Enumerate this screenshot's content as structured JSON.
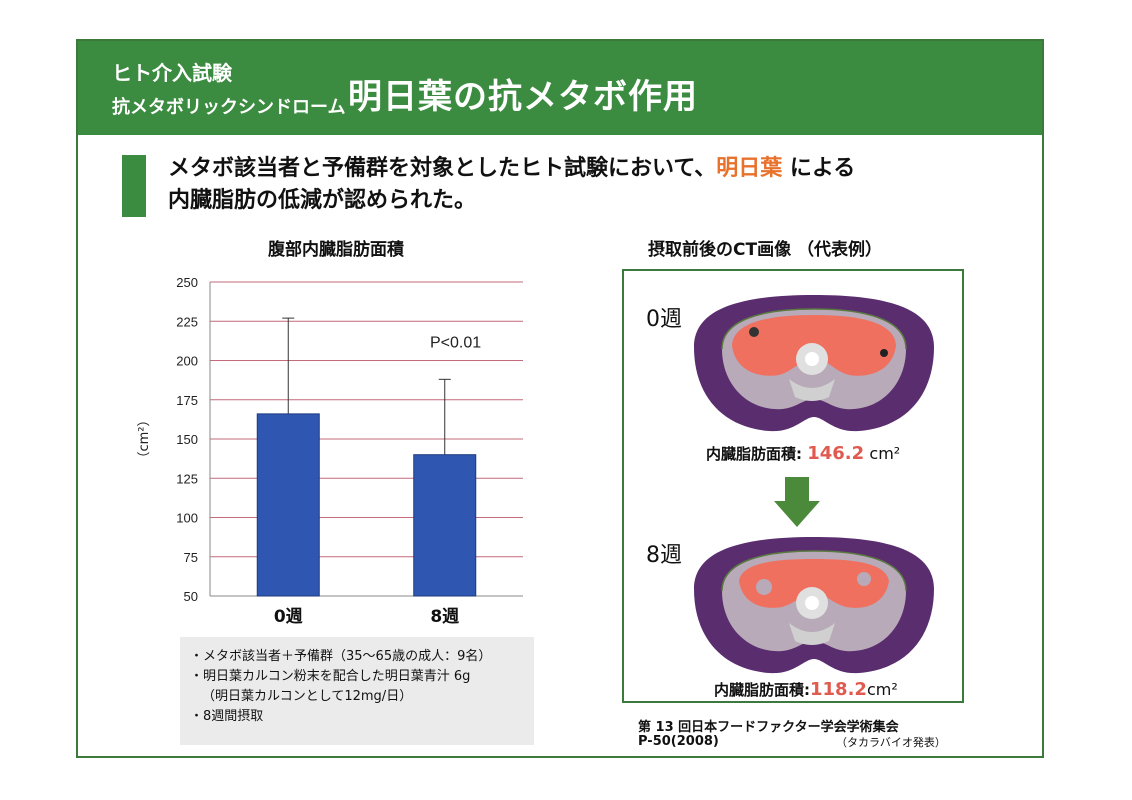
{
  "header": {
    "subtitle1": "ヒト介入試験",
    "subtitle2": "抗メタボリックシンドローム",
    "title": "明日葉の抗メタボ作用"
  },
  "lead": {
    "line1_pre": "メタボ該当者と予備群を対象としたヒト試験において、",
    "line1_highlight": "明日葉",
    "line1_post": " による",
    "line2": "内臓脂肪の低減が認められた。"
  },
  "chart_title": "腹部内臓脂肪面積",
  "ct_title": "摂取前後のCT画像 （代表例）",
  "chart_data": {
    "type": "bar",
    "categories": [
      "0週",
      "8週"
    ],
    "values": [
      166,
      140
    ],
    "errors": [
      61,
      48
    ],
    "ylabel": "（cm²）",
    "ylim": [
      50,
      250
    ],
    "yticks": [
      50,
      75,
      100,
      125,
      150,
      175,
      200,
      225,
      250
    ],
    "annotation": "P<0.01",
    "grid": true,
    "bar_color": "#2f56b0"
  },
  "notes": [
    "・メタボ該当者＋予備群（35～65歳の成人：9名）",
    "・明日葉カルコン粉末を配合した明日葉青汁 6g",
    "（明日葉カルコンとして12mg/日）",
    "・8週間摂取"
  ],
  "ct": {
    "week0_label": "0週",
    "week8_label": "8週",
    "area_label": "内臓脂肪面積:",
    "area0_value": "146.2",
    "area8_value": "118.2",
    "unit": "cm²"
  },
  "citation": {
    "line1": "第 13 回日本フードファクター学会学術集会",
    "line2": "P-50(2008)",
    "presenter": "（タカラバイオ発表）"
  },
  "colors": {
    "header_green": "#3b8b40",
    "highlight_orange": "#e8712c",
    "value_red": "#e05a4f",
    "ct_purple": "#5a2d6e",
    "ct_fat": "#f07060",
    "arrow_green": "#4a8a3a"
  }
}
